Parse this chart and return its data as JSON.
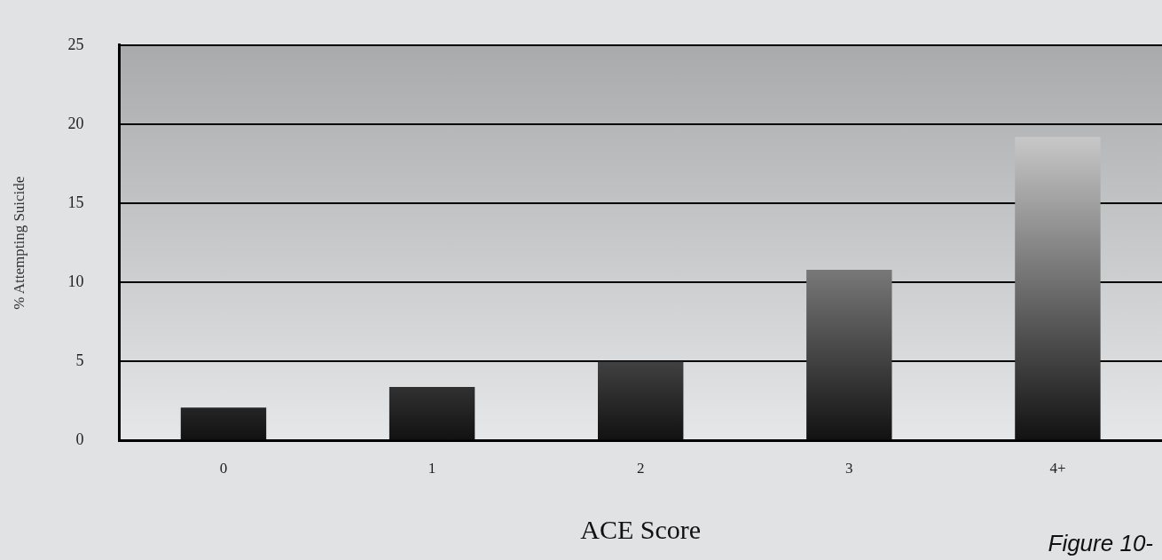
{
  "chart_data": {
    "type": "bar",
    "xlabel": "ACE Score",
    "ylabel": "% Attempting Suicide",
    "categories": [
      "0",
      "1",
      "2",
      "3",
      "4+"
    ],
    "values": [
      2.1,
      3.4,
      5.0,
      10.8,
      19.2
    ],
    "color": "#111111",
    "ylim": [
      0,
      25
    ],
    "yticks": [
      0,
      5,
      10,
      15,
      20,
      25
    ],
    "grid": "y",
    "annotations": [
      "Figure 10-"
    ]
  }
}
